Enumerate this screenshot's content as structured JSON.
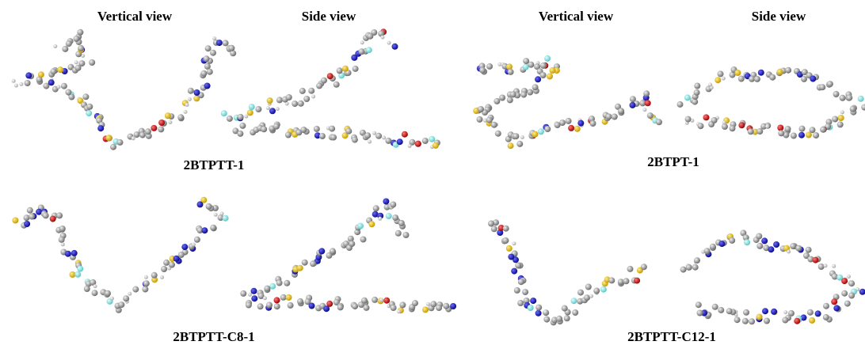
{
  "headers": [
    "Vertical view",
    "Side view",
    "Vertical view",
    "Side view"
  ],
  "panels": [
    {
      "label": "2BTPTT-1"
    },
    {
      "label": "2BTPT-1"
    },
    {
      "label": "2BTPTT-C8-1"
    },
    {
      "label": "2BTPTT-C12-1"
    }
  ]
}
